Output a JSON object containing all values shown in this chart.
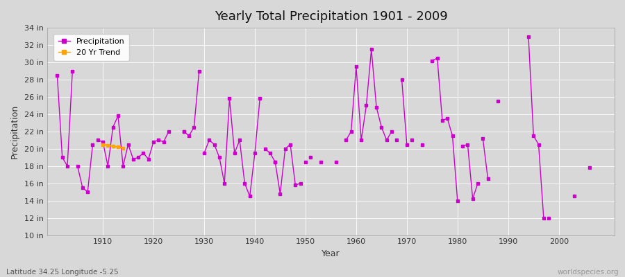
{
  "title": "Yearly Total Precipitation 1901 - 2009",
  "xlabel": "Year",
  "ylabel": "Precipitation",
  "lat_lon_label": "Latitude 34.25 Longitude -5.25",
  "source_label": "worldspecies.org",
  "ylim": [
    10,
    34
  ],
  "yticks": [
    10,
    12,
    14,
    16,
    18,
    20,
    22,
    24,
    26,
    28,
    30,
    32,
    34
  ],
  "ytick_labels": [
    "10 in",
    "12 in",
    "14 in",
    "16 in",
    "18 in",
    "20 in",
    "22 in",
    "24 in",
    "26 in",
    "28 in",
    "30 in",
    "32 in",
    "34 in"
  ],
  "xlim": [
    1899,
    2011
  ],
  "xticks": [
    1910,
    1920,
    1930,
    1940,
    1950,
    1960,
    1970,
    1980,
    1990,
    2000
  ],
  "bg_color": "#d8d8d8",
  "line_color": "#cc00cc",
  "trend_color": "#ffa500",
  "all_years": [
    1901,
    1902,
    1903,
    1904,
    1905,
    1906,
    1907,
    1908,
    1909,
    1910,
    1911,
    1912,
    1913,
    1914,
    1915,
    1916,
    1917,
    1918,
    1919,
    1920,
    1921,
    1922,
    1923,
    1924,
    1925,
    1926,
    1927,
    1928,
    1929,
    1930,
    1931,
    1932,
    1933,
    1934,
    1935,
    1936,
    1937,
    1938,
    1939,
    1940,
    1941,
    1942,
    1943,
    1944,
    1945,
    1946,
    1947,
    1948,
    1949,
    1950,
    1951,
    1952,
    1953,
    1954,
    1955,
    1956,
    1957,
    1958,
    1959,
    1960,
    1961,
    1962,
    1963,
    1964,
    1965,
    1966,
    1967,
    1968,
    1969,
    1970,
    1971,
    1972,
    1973,
    1974,
    1975,
    1976,
    1977,
    1978,
    1979,
    1980,
    1981,
    1982,
    1983,
    1984,
    1985,
    1986,
    1987,
    1988,
    1989,
    1990,
    1991,
    1992,
    1993,
    1994,
    1995,
    1996,
    1997,
    1998,
    1999,
    2000,
    2001,
    2002,
    2003,
    2004,
    2005,
    2006,
    2007,
    2008,
    2009
  ],
  "all_values": [
    28.5,
    19.0,
    null,
    null,
    null,
    null,
    null,
    null,
    null,
    null,
    null,
    null,
    null,
    null,
    null,
    null,
    null,
    null,
    null,
    null,
    null,
    null,
    null,
    null,
    null,
    null,
    null,
    null,
    null,
    null,
    null,
    null,
    null,
    null,
    null,
    null,
    null,
    null,
    null,
    null,
    null,
    null,
    null,
    null,
    null,
    null,
    null,
    null,
    null,
    null,
    null,
    null,
    null,
    null,
    null,
    null,
    null,
    null,
    null,
    null,
    null,
    null,
    null,
    null,
    null,
    null,
    null,
    null,
    null,
    null,
    null,
    null,
    null,
    null,
    null,
    null,
    null,
    null,
    null,
    null,
    null,
    null,
    null,
    null,
    null,
    null,
    null,
    null,
    null,
    null,
    null,
    null,
    null,
    null,
    null,
    null,
    null,
    null,
    null,
    null,
    null,
    null,
    null,
    null,
    null,
    null,
    null,
    null,
    null
  ],
  "segments": [
    {
      "years": [
        1901,
        1902,
        1903,
        1904
      ],
      "values": [
        28.5,
        19.0,
        18.0,
        29.0
      ]
    },
    {
      "years": [
        1905,
        1906,
        1907,
        1908
      ],
      "values": [
        18.0,
        15.5,
        15.0,
        20.5
      ]
    },
    {
      "years": [
        1909,
        1910,
        1911,
        1912,
        1913,
        1914,
        1915,
        1916,
        1917,
        1918,
        1919,
        1920,
        1921,
        1922,
        1923
      ],
      "values": [
        21.0,
        20.8,
        18.0,
        22.5,
        23.8,
        18.0,
        20.5,
        18.8,
        19.0,
        19.5,
        18.8,
        20.8,
        21.0,
        20.8,
        22.0
      ]
    },
    {
      "years": [
        1926,
        1927,
        1928,
        1929
      ],
      "values": [
        22.0,
        21.5,
        22.5,
        29.0
      ]
    },
    {
      "years": [
        1930,
        1931,
        1932,
        1933,
        1934,
        1935,
        1936,
        1937,
        1938,
        1939,
        1940,
        1941
      ],
      "values": [
        19.5,
        21.0,
        20.5,
        19.0,
        16.0,
        25.8,
        19.5,
        21.0,
        16.0,
        14.5,
        19.5,
        25.8
      ]
    },
    {
      "years": [
        1942,
        1943,
        1944,
        1945,
        1946,
        1947,
        1948,
        1949
      ],
      "values": [
        20.0,
        19.5,
        18.5,
        14.8,
        20.0,
        20.5,
        15.8,
        16.0
      ]
    },
    {
      "years": [
        1958,
        1959,
        1960,
        1961,
        1962,
        1963,
        1964,
        1965,
        1966,
        1967
      ],
      "values": [
        21.0,
        22.0,
        29.5,
        21.0,
        25.0,
        31.5,
        24.8,
        22.5,
        21.0,
        22.0
      ]
    },
    {
      "years": [
        1969,
        1970
      ],
      "values": [
        28.0,
        20.5
      ]
    },
    {
      "years": [
        1975,
        1976,
        1977,
        1978,
        1979,
        1980
      ],
      "values": [
        30.2,
        30.5,
        23.3,
        23.5,
        21.5,
        14.0
      ]
    },
    {
      "years": [
        1981,
        1982,
        1983,
        1984
      ],
      "values": [
        20.3,
        20.5,
        14.2,
        16.0
      ]
    },
    {
      "years": [
        1985,
        1986
      ],
      "values": [
        21.2,
        16.5
      ]
    },
    {
      "years": [
        1994,
        1995,
        1996,
        1997
      ],
      "values": [
        33.0,
        21.5,
        20.5,
        12.0
      ]
    }
  ],
  "isolated_points": [
    {
      "year": 1926,
      "value": 22.0
    },
    {
      "year": 1944,
      "value": 18.5
    },
    {
      "year": 1950,
      "value": 18.5
    },
    {
      "year": 1951,
      "value": 19.0
    },
    {
      "year": 1953,
      "value": 18.5
    },
    {
      "year": 1956,
      "value": 18.5
    },
    {
      "year": 1968,
      "value": 21.0
    },
    {
      "year": 1971,
      "value": 21.0
    },
    {
      "year": 1973,
      "value": 20.5
    },
    {
      "year": 1988,
      "value": 25.5
    },
    {
      "year": 1998,
      "value": 12.0
    },
    {
      "year": 2003,
      "value": 14.5
    },
    {
      "year": 2006,
      "value": 17.8
    }
  ],
  "trend_segments": [
    {
      "years": [
        1910,
        1911,
        1912,
        1913,
        1914
      ],
      "values": [
        20.5,
        20.4,
        20.3,
        20.2,
        20.1
      ]
    }
  ]
}
